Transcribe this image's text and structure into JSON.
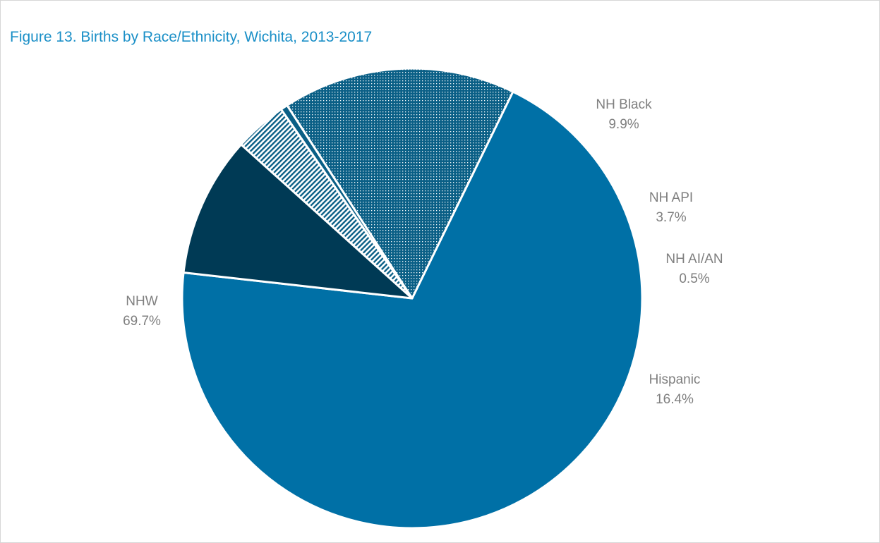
{
  "chart_data": {
    "type": "pie",
    "title": "Figure 13. Births by Race/Ethnicity, Wichita, 2013-2017",
    "legend": "none",
    "slices": [
      {
        "name": "NHW",
        "value": 69.7,
        "label": "69.7%",
        "color": "#0070a6",
        "pattern": "solid"
      },
      {
        "name": "NH Black",
        "value": 9.9,
        "label": "9.9%",
        "color": "#003a55",
        "pattern": "solid"
      },
      {
        "name": "NH API",
        "value": 3.7,
        "label": "3.7%",
        "color": "#0a5f86",
        "pattern": "diagonal-hatch"
      },
      {
        "name": "NH AI/AN",
        "value": 0.5,
        "label": "0.5%",
        "color": "#0a5f86",
        "pattern": "solid"
      },
      {
        "name": "Hispanic",
        "value": 16.4,
        "label": "16.4%",
        "color": "#0a5f86",
        "pattern": "dotted"
      }
    ]
  }
}
